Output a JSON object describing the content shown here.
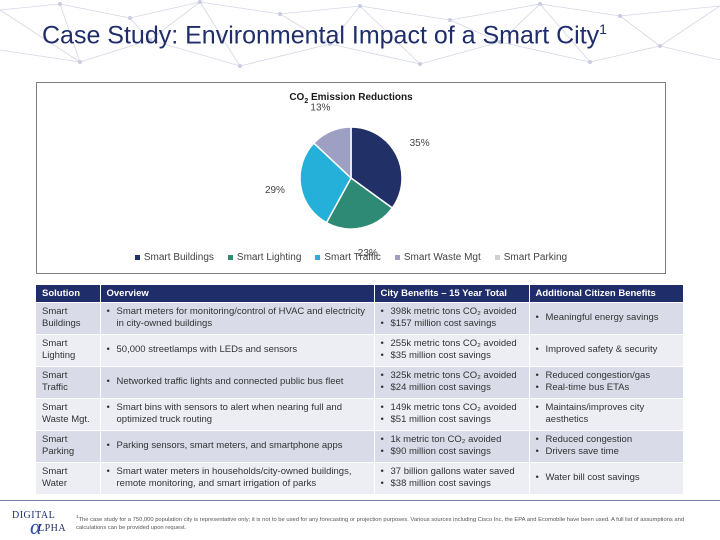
{
  "header": {
    "title": "Case Study: Environmental Impact of a Smart City",
    "title_marker": "1"
  },
  "chart_data": {
    "type": "pie",
    "title": "CO2 Emission Reductions",
    "title_parts": {
      "before": "CO",
      "sub": "2",
      "after": " Emission Reductions"
    },
    "categories": [
      "Smart Buildings",
      "Smart Lighting",
      "Smart Traffic",
      "Smart Waste Mgt",
      "Smart Parking"
    ],
    "values": [
      35,
      23,
      29,
      13,
      0
    ],
    "labels": [
      "35%",
      "23%",
      "29%",
      "13%",
      ""
    ],
    "colors": [
      "#223068",
      "#2e8a74",
      "#24b0d8",
      "#9ea0c3",
      "#d0d0d0"
    ],
    "legend_position": "bottom",
    "start_angle_deg": 0
  },
  "table": {
    "headers": [
      "Solution",
      "Overview",
      "City Benefits – 15 Year Total",
      "Additional Citizen Benefits"
    ],
    "rows": [
      {
        "solution": "Smart Buildings",
        "overview": [
          "Smart meters for monitoring/control of HVAC and electricity in city-owned buildings"
        ],
        "benefits": [
          "398k metric tons CO₂ avoided",
          "$157 million cost savings"
        ],
        "citizen": [
          "Meaningful energy savings"
        ]
      },
      {
        "solution": "Smart Lighting",
        "overview": [
          "50,000 streetlamps with LEDs and sensors"
        ],
        "benefits": [
          "255k metric tons CO₂ avoided",
          "$35 million cost savings"
        ],
        "citizen": [
          "Improved safety & security"
        ]
      },
      {
        "solution": "Smart Traffic",
        "overview": [
          "Networked traffic lights and connected public bus fleet"
        ],
        "benefits": [
          "325k metric tons CO₂ avoided",
          "$24 million cost savings"
        ],
        "citizen": [
          "Reduced congestion/gas",
          "Real-time bus ETAs"
        ]
      },
      {
        "solution": "Smart Waste Mgt.",
        "overview": [
          "Smart bins with sensors to alert when nearing full and optimized truck routing"
        ],
        "benefits": [
          "149k metric tons CO₂ avoided",
          "$51 million cost savings"
        ],
        "citizen": [
          "Maintains/improves city aesthetics"
        ]
      },
      {
        "solution": "Smart Parking",
        "overview": [
          "Parking sensors, smart meters, and smartphone apps"
        ],
        "benefits": [
          "1k metric ton CO₂ avoided",
          "$90 million cost savings"
        ],
        "citizen": [
          "Reduced congestion",
          "Drivers save time"
        ]
      },
      {
        "solution": "Smart Water",
        "overview": [
          "Smart water meters in households/city-owned buildings, remote monitoring, and smart irrigation of parks"
        ],
        "benefits": [
          "37 billion gallons water saved",
          "$38 million cost savings"
        ],
        "citizen": [
          "Water bill cost savings"
        ]
      }
    ]
  },
  "footer": {
    "logo_line1": "DIGITAL",
    "logo_symbol": "α",
    "logo_line2": "LPHA",
    "footnote_marker": "1",
    "footnote": "The case study for a 750,000 population city is representative only; it is not to be used for any forecasting or projection purposes. Various sources including Cisco Inc, the EPA and Ecomobile have been used. A full list of assumptions and calculations can be provided upon request."
  }
}
